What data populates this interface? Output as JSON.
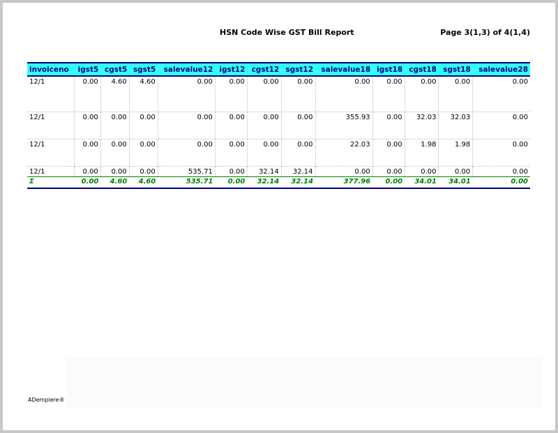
{
  "report": {
    "title": "HSN Code Wise GST Bill Report",
    "page_info": "Page 3(1,3) of 4(1,4)"
  },
  "table": {
    "headers": [
      "invoiceno",
      "igst5",
      "cgst5",
      "sgst5",
      "salevalue12",
      "igst12",
      "cgst12",
      "sgst12",
      "salevalue18",
      "igst18",
      "cgst18",
      "sgst18",
      "salevalue28"
    ],
    "rows": [
      [
        "12/1",
        "0.00",
        "4.60",
        "4.60",
        "0.00",
        "0.00",
        "0.00",
        "0.00",
        "0.00",
        "0.00",
        "0.00",
        "0.00",
        "0.00"
      ],
      [
        "12/1",
        "0.00",
        "0.00",
        "0.00",
        "0.00",
        "0.00",
        "0.00",
        "0.00",
        "355.93",
        "0.00",
        "32.03",
        "32.03",
        "0.00"
      ],
      [
        "12/1",
        "0.00",
        "0.00",
        "0.00",
        "0.00",
        "0.00",
        "0.00",
        "0.00",
        "22.03",
        "0.00",
        "1.98",
        "1.98",
        "0.00"
      ],
      [
        "12/1",
        "0.00",
        "0.00",
        "0.00",
        "535.71",
        "0.00",
        "32.14",
        "32.14",
        "0.00",
        "0.00",
        "0.00",
        "0.00",
        "0.00"
      ]
    ],
    "total": [
      "Σ",
      "0.00",
      "4.60",
      "4.60",
      "535.71",
      "0.00",
      "32.14",
      "32.14",
      "377.96",
      "0.00",
      "34.01",
      "34.01",
      "0.00"
    ]
  },
  "footer": {
    "brand": "ADempiere®"
  },
  "colors": {
    "header_bg": "#33ffff",
    "header_text": "#000080",
    "total_text": "#008000"
  }
}
